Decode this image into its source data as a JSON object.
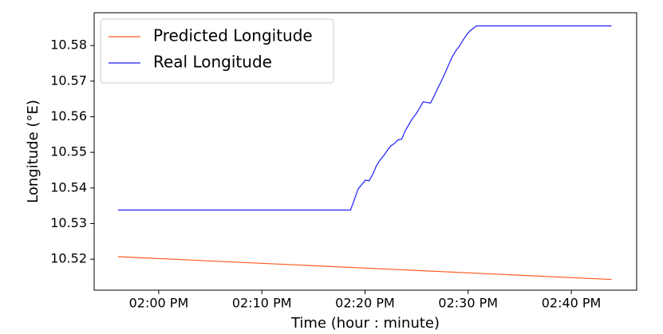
{
  "chart_data": {
    "type": "line",
    "xlabel": "Time (hour : minute)",
    "ylabel": "Longitude (°E)",
    "xlim": [
      833.74,
      886.34
    ],
    "ylim": [
      10.5113,
      10.5892
    ],
    "xticks": [
      {
        "value": 840,
        "label": "02:00 PM"
      },
      {
        "value": 850,
        "label": "02:10 PM"
      },
      {
        "value": 860,
        "label": "02:20 PM"
      },
      {
        "value": 870,
        "label": "02:30 PM"
      },
      {
        "value": 880,
        "label": "02:40 PM"
      }
    ],
    "yticks": [
      10.52,
      10.53,
      10.54,
      10.55,
      10.56,
      10.57,
      10.58
    ],
    "grid": false,
    "legend": "upper left",
    "series": [
      {
        "name": "Predicted Longitude",
        "color": "#ff5a1f",
        "x": [
          836.05,
          883.9
        ],
        "values": [
          10.5207,
          10.5143
        ]
      },
      {
        "name": "Real Longitude",
        "color": "#1f1fff",
        "x": [
          836.05,
          858.6,
          859.0,
          859.35,
          859.7,
          860.05,
          860.4,
          860.75,
          861.1,
          861.45,
          861.8,
          862.15,
          862.5,
          862.85,
          863.2,
          863.55,
          863.9,
          864.25,
          864.6,
          864.95,
          865.3,
          865.65,
          866.0,
          866.35,
          866.7,
          867.05,
          867.4,
          867.75,
          868.1,
          868.45,
          868.8,
          869.15,
          869.5,
          869.85,
          870.2,
          870.8,
          883.9
        ],
        "values": [
          10.5338,
          10.5338,
          10.537,
          10.5398,
          10.541,
          10.5422,
          10.542,
          10.5438,
          10.5462,
          10.5478,
          10.549,
          10.5505,
          10.5518,
          10.5525,
          10.5535,
          10.5537,
          10.556,
          10.5578,
          10.5595,
          10.5608,
          10.5625,
          10.5642,
          10.564,
          10.5638,
          10.5658,
          10.568,
          10.57,
          10.5722,
          10.5745,
          10.5768,
          10.5785,
          10.5798,
          10.5815,
          10.583,
          10.5842,
          10.5855,
          10.5855
        ]
      }
    ]
  }
}
